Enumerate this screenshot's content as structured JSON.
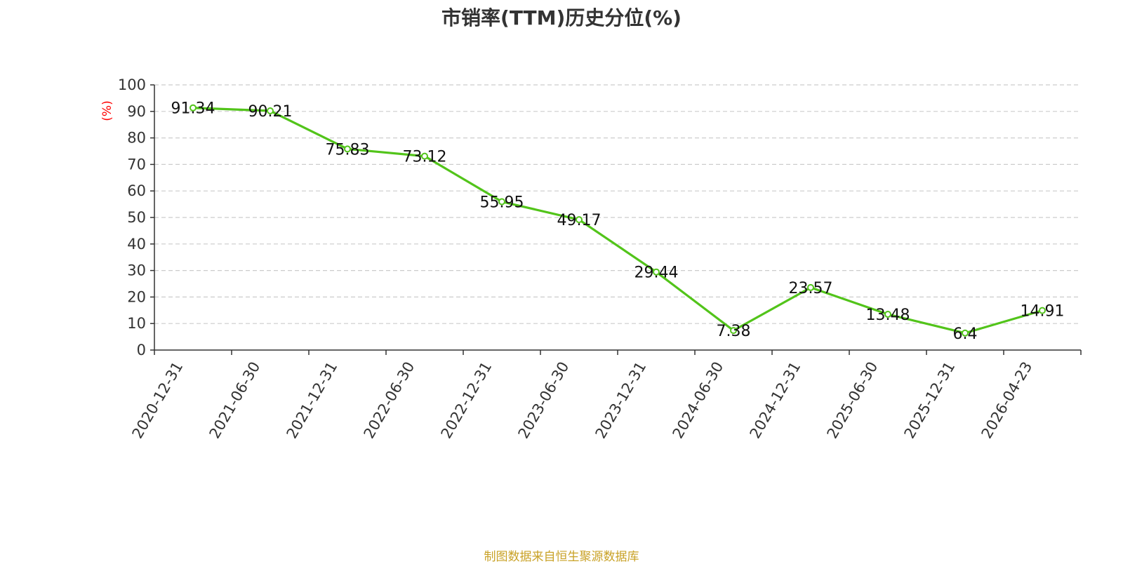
{
  "chart_data": {
    "type": "line",
    "title": "市销率(TTM)历史分位(%)",
    "xlabel": "",
    "ylabel": "(%)",
    "x": [
      "2020-12-31",
      "2021-06-30",
      "2021-12-31",
      "2022-06-30",
      "2022-12-31",
      "2023-06-30",
      "2023-12-31",
      "2024-06-30",
      "2024-12-31",
      "2025-06-30",
      "2025-12-31",
      "2026-04-23"
    ],
    "series": [
      {
        "values": [
          91.34,
          90.21,
          75.83,
          73.12,
          55.95,
          49.17,
          29.44,
          7.38,
          23.57,
          13.48,
          6.4,
          14.91
        ]
      }
    ],
    "data_labels": [
      "91.34",
      "90.21",
      "75.83",
      "73.12",
      "55.95",
      "49.17",
      "29.44",
      "7.38",
      "23.57",
      "13.48",
      "6.4",
      "14.91"
    ],
    "ylim": [
      0,
      100
    ],
    "yticks": [
      0,
      10,
      20,
      30,
      40,
      50,
      60,
      70,
      80,
      90,
      100
    ],
    "grid": true,
    "legend": "none",
    "colors": {
      "line": "#52c41a",
      "marker_fill": "#ffffff",
      "grid": "#cccccc",
      "axis": "#333333",
      "ylabel": "#ff0000",
      "title": "#333333",
      "source": "#c9a227"
    }
  },
  "footer": {
    "source_text": "制图数据来自恒生聚源数据库"
  }
}
